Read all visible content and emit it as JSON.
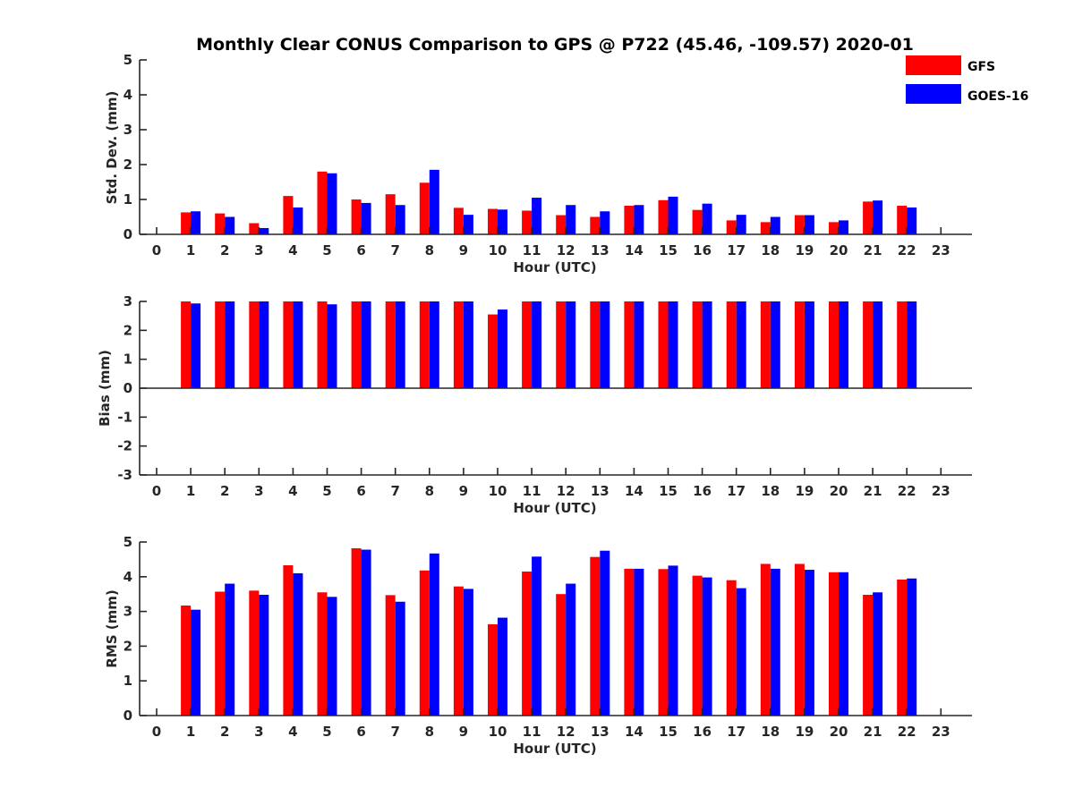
{
  "title": "Monthly Clear CONUS Comparison to GPS @ P722 (45.46, -109.57) 2020-01",
  "legend": {
    "position": "top-right",
    "entries": [
      "GFS",
      "GOES-16"
    ]
  },
  "colors": {
    "GFS": "#ff0000",
    "GOES-16": "#0000ff",
    "axis": "#262626"
  },
  "chart_data": [
    {
      "type": "bar",
      "xlabel": "Hour (UTC)",
      "ylabel": "Std. Dev. (mm)",
      "ylim": [
        0,
        5
      ],
      "yticks": [
        "0",
        "1",
        "2",
        "3",
        "4",
        "5"
      ],
      "categories": [
        "0",
        "1",
        "2",
        "3",
        "4",
        "5",
        "6",
        "7",
        "8",
        "9",
        "10",
        "11",
        "12",
        "13",
        "14",
        "15",
        "16",
        "17",
        "18",
        "19",
        "20",
        "21",
        "22",
        "23"
      ],
      "series": [
        {
          "name": "GFS",
          "values": [
            null,
            0.63,
            0.6,
            0.32,
            1.1,
            1.8,
            1.0,
            1.15,
            1.48,
            0.76,
            0.73,
            0.68,
            0.55,
            0.5,
            0.82,
            0.98,
            0.7,
            0.4,
            0.35,
            0.55,
            0.35,
            0.94,
            0.82,
            null
          ]
        },
        {
          "name": "GOES-16",
          "values": [
            null,
            0.66,
            0.5,
            0.18,
            0.77,
            1.75,
            0.9,
            0.84,
            1.85,
            0.56,
            0.71,
            1.05,
            0.84,
            0.66,
            0.84,
            1.08,
            0.88,
            0.56,
            0.5,
            0.55,
            0.4,
            0.97,
            0.77,
            null
          ]
        }
      ]
    },
    {
      "type": "bar",
      "xlabel": "Hour (UTC)",
      "ylabel": "Bias (mm)",
      "ylim": [
        -3,
        3
      ],
      "yticks": [
        "-3",
        "-2",
        "-1",
        "0",
        "1",
        "2",
        "3"
      ],
      "categories": [
        "0",
        "1",
        "2",
        "3",
        "4",
        "5",
        "6",
        "7",
        "8",
        "9",
        "10",
        "11",
        "12",
        "13",
        "14",
        "15",
        "16",
        "17",
        "18",
        "19",
        "20",
        "21",
        "22",
        "23"
      ],
      "series": [
        {
          "name": "GFS",
          "values": [
            null,
            3.0,
            3.0,
            3.0,
            3.0,
            3.0,
            3.0,
            3.0,
            3.0,
            3.0,
            2.55,
            3.0,
            3.0,
            3.0,
            3.0,
            3.0,
            3.0,
            3.0,
            3.0,
            3.0,
            3.0,
            3.0,
            3.0,
            null
          ]
        },
        {
          "name": "GOES-16",
          "values": [
            null,
            2.93,
            3.0,
            3.0,
            3.0,
            2.9,
            3.0,
            3.0,
            3.0,
            3.0,
            2.72,
            3.0,
            3.0,
            3.0,
            3.0,
            3.0,
            3.0,
            3.0,
            3.0,
            3.0,
            3.0,
            3.0,
            3.0,
            null
          ]
        }
      ]
    },
    {
      "type": "bar",
      "xlabel": "Hour (UTC)",
      "ylabel": "RMS (mm)",
      "ylim": [
        0,
        5
      ],
      "yticks": [
        "0",
        "1",
        "2",
        "3",
        "4",
        "5"
      ],
      "categories": [
        "0",
        "1",
        "2",
        "3",
        "4",
        "5",
        "6",
        "7",
        "8",
        "9",
        "10",
        "11",
        "12",
        "13",
        "14",
        "15",
        "16",
        "17",
        "18",
        "19",
        "20",
        "21",
        "22",
        "23"
      ],
      "series": [
        {
          "name": "GFS",
          "values": [
            null,
            3.17,
            3.57,
            3.6,
            4.33,
            3.55,
            4.82,
            3.47,
            4.18,
            3.72,
            2.63,
            4.15,
            3.5,
            4.57,
            4.23,
            4.22,
            4.03,
            3.9,
            4.37,
            4.37,
            4.13,
            3.48,
            3.92,
            null
          ]
        },
        {
          "name": "GOES-16",
          "values": [
            null,
            3.05,
            3.8,
            3.48,
            4.1,
            3.42,
            4.78,
            3.28,
            4.67,
            3.65,
            2.82,
            4.58,
            3.8,
            4.75,
            4.23,
            4.32,
            3.98,
            3.67,
            4.23,
            4.2,
            4.13,
            3.55,
            3.95,
            null
          ]
        }
      ]
    }
  ]
}
